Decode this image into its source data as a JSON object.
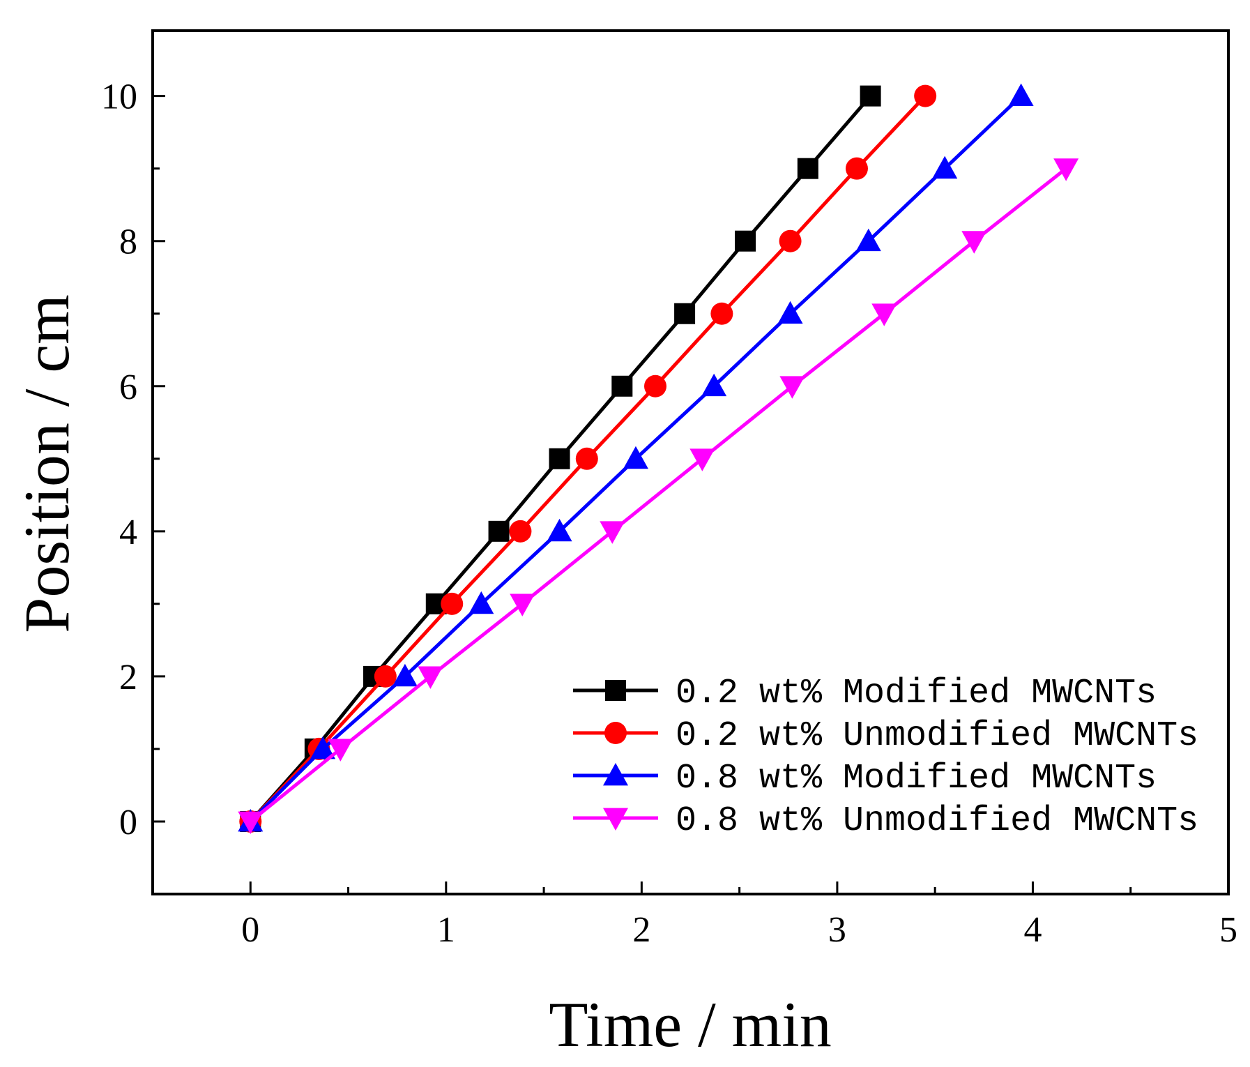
{
  "chart_data": {
    "type": "line",
    "title": "",
    "xlabel": "Time / min",
    "ylabel": "Position / cm",
    "xlim": [
      -0.5,
      5
    ],
    "ylim": [
      -1,
      10.9
    ],
    "xticks": [
      0,
      1,
      2,
      3,
      4,
      5
    ],
    "xtick_labels": [
      "0",
      "1",
      "2",
      "3",
      "4",
      "5"
    ],
    "yticks": [
      0,
      2,
      4,
      6,
      8,
      10
    ],
    "ytick_labels": [
      "0",
      "2",
      "4",
      "6",
      "8",
      "10"
    ],
    "x_minor_step": 0.5,
    "y_minor_step": 1,
    "grid": false,
    "legend_position": "bottom-right",
    "series": [
      {
        "name": "0.2 wt% Modified MWCNTs",
        "color": "#000000",
        "marker": "square",
        "x": [
          0,
          0.33,
          0.63,
          0.95,
          1.27,
          1.58,
          1.9,
          2.22,
          2.53,
          2.85,
          3.17
        ],
        "y": [
          0,
          1,
          2,
          3,
          4,
          5,
          6,
          7,
          8,
          9,
          10
        ]
      },
      {
        "name": "0.2 wt% Unmodified MWCNTs",
        "color": "#ff0000",
        "marker": "circle",
        "x": [
          0,
          0.35,
          0.69,
          1.03,
          1.38,
          1.72,
          2.07,
          2.41,
          2.76,
          3.1,
          3.45
        ],
        "y": [
          0,
          1,
          2,
          3,
          4,
          5,
          6,
          7,
          8,
          9,
          10
        ]
      },
      {
        "name": "0.8 wt% Modified MWCNTs",
        "color": "#0000ff",
        "marker": "triangle-up",
        "x": [
          0,
          0.37,
          0.79,
          1.18,
          1.58,
          1.97,
          2.37,
          2.76,
          3.16,
          3.55,
          3.94
        ],
        "y": [
          0,
          1,
          2,
          3,
          4,
          5,
          6,
          7,
          8,
          9,
          10
        ]
      },
      {
        "name": "0.8 wt% Unmodified MWCNTs",
        "color": "#ff00ff",
        "marker": "triangle-down",
        "x": [
          0,
          0.46,
          0.92,
          1.39,
          1.85,
          2.31,
          2.77,
          3.24,
          3.7,
          4.17
        ],
        "y": [
          0,
          1,
          2,
          3,
          4,
          5,
          6,
          7,
          8,
          9
        ]
      }
    ]
  }
}
